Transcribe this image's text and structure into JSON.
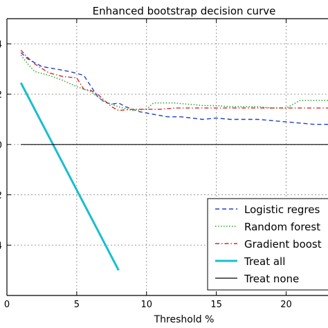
{
  "chart_data": {
    "type": "line",
    "title": "Enhanced bootstrap decision curve",
    "xlabel": "Threshold %",
    "ylabel": "",
    "xlim": [
      0,
      23
    ],
    "ylim": [
      -0.6,
      0.5
    ],
    "grid": true,
    "legend_position": "bottom-right",
    "x_ticks": [
      0,
      5,
      10,
      15,
      20
    ],
    "x_tick_labels": [
      "0",
      "5",
      "10",
      "15",
      "20"
    ],
    "y_ticks": [
      -0.4,
      -0.2,
      0,
      0.2,
      0.4
    ],
    "y_tick_labels": [
      ".4",
      ".2",
      "0",
      ".2",
      ".4"
    ],
    "series": [
      {
        "name": "Logistic regres",
        "color": "#1f3fbf",
        "style": "dashed",
        "x": [
          1,
          1.5,
          2.5,
          3.5,
          4.5,
          5.5,
          6.5,
          7,
          7.5,
          8,
          8.5,
          9.5,
          10.5,
          11.5,
          12.5,
          14,
          15,
          16,
          17,
          18,
          19,
          20,
          21,
          22,
          23
        ],
        "y": [
          0.365,
          0.34,
          0.31,
          0.3,
          0.29,
          0.275,
          0.19,
          0.168,
          0.16,
          0.165,
          0.15,
          0.13,
          0.12,
          0.11,
          0.11,
          0.1,
          0.105,
          0.1,
          0.1,
          0.1,
          0.095,
          0.09,
          0.085,
          0.08,
          0.08
        ]
      },
      {
        "name": "Random forest",
        "color": "#2ca02c",
        "style": "dotted",
        "x": [
          1,
          1.5,
          2,
          3,
          4,
          5,
          6,
          7,
          8,
          9,
          10,
          10.5,
          11,
          12,
          13,
          14,
          15,
          16,
          17,
          18,
          19,
          20,
          21,
          22,
          23
        ],
        "y": [
          0.355,
          0.32,
          0.29,
          0.275,
          0.255,
          0.23,
          0.21,
          0.17,
          0.15,
          0.135,
          0.14,
          0.165,
          0.165,
          0.165,
          0.16,
          0.155,
          0.155,
          0.15,
          0.15,
          0.15,
          0.145,
          0.145,
          0.175,
          0.175,
          0.175
        ]
      },
      {
        "name": "Gradient boost",
        "color": "#d62728",
        "style": "dashdot",
        "x": [
          1,
          1.5,
          2,
          3,
          4,
          5,
          5.5,
          6,
          6.5,
          7,
          7.5,
          8,
          9,
          10,
          11,
          12,
          13,
          14,
          15,
          16,
          17,
          18,
          19,
          20,
          21,
          22,
          23
        ],
        "y": [
          0.375,
          0.345,
          0.32,
          0.285,
          0.27,
          0.265,
          0.22,
          0.215,
          0.2,
          0.175,
          0.15,
          0.135,
          0.14,
          0.14,
          0.14,
          0.145,
          0.145,
          0.145,
          0.145,
          0.145,
          0.145,
          0.145,
          0.145,
          0.145,
          0.145,
          0.145,
          0.145
        ]
      },
      {
        "name": "Treat all",
        "color": "#17becf",
        "style": "solid-thick",
        "x": [
          1,
          8
        ],
        "y": [
          0.245,
          -0.5
        ]
      },
      {
        "name": "Treat none",
        "color": "#000000",
        "style": "solid",
        "x": [
          1,
          23
        ],
        "y": [
          0,
          0
        ]
      }
    ]
  }
}
